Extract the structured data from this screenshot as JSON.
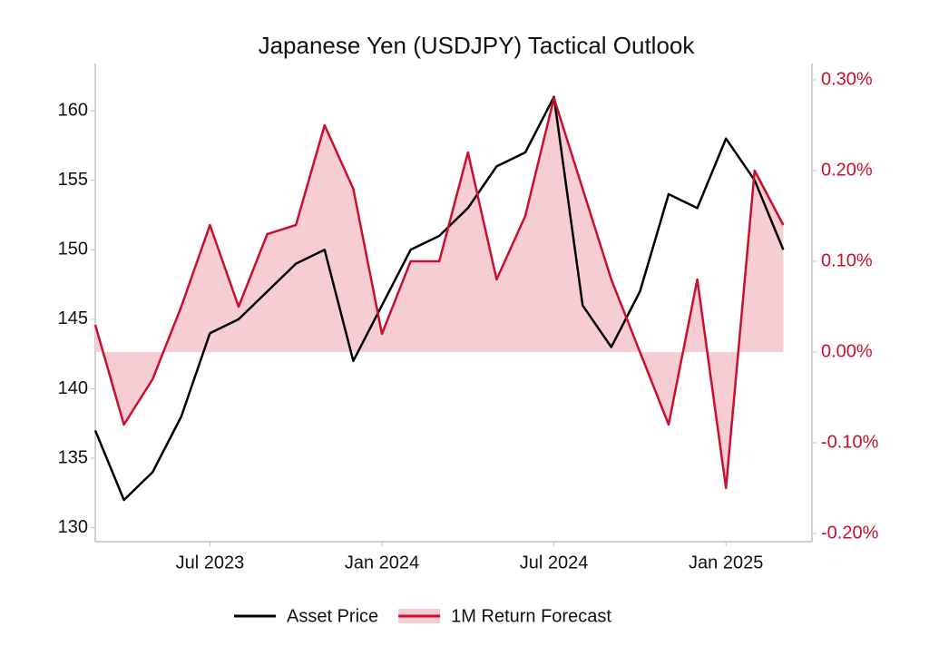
{
  "chart_data": {
    "type": "line",
    "title": "Japanese Yen (USDJPY) Tactical Outlook",
    "x": [
      "2023-03",
      "2023-04",
      "2023-05",
      "2023-06",
      "2023-07",
      "2023-08",
      "2023-09",
      "2023-10",
      "2023-11",
      "2023-12",
      "2024-01",
      "2024-02",
      "2024-03",
      "2024-04",
      "2024-05",
      "2024-06",
      "2024-07",
      "2024-08",
      "2024-09",
      "2024-10",
      "2024-11",
      "2024-12",
      "2025-01",
      "2025-02",
      "2025-03"
    ],
    "series": [
      {
        "name": "Asset Price",
        "color": "#000000",
        "values": [
          137,
          132,
          134,
          138,
          144,
          145,
          147,
          149,
          150,
          142,
          146,
          150,
          151,
          153,
          156,
          157,
          161,
          146,
          143,
          147,
          154,
          153,
          158,
          155,
          150
        ]
      },
      {
        "name": "1M Return Forecast",
        "color": "#c8102e",
        "fill": "#f6cdd2",
        "axis": "y2",
        "values": [
          0.03,
          -0.08,
          -0.03,
          0.05,
          0.14,
          0.05,
          0.13,
          0.14,
          0.25,
          0.18,
          0.02,
          0.1,
          0.1,
          0.22,
          0.08,
          0.15,
          0.28,
          0.18,
          0.08,
          0.0,
          -0.08,
          0.08,
          -0.15,
          0.2,
          0.14
        ]
      }
    ],
    "xlim": [
      "2023-03",
      "2025-04"
    ],
    "xticks": [
      {
        "value": "2023-07",
        "label": "Jul 2023"
      },
      {
        "value": "2024-01",
        "label": "Jan 2024"
      },
      {
        "value": "2024-07",
        "label": "Jul 2024"
      },
      {
        "value": "2025-01",
        "label": "Jan 2025"
      }
    ],
    "ylim": [
      129,
      163.4
    ],
    "yticks": [
      130,
      135,
      140,
      145,
      150,
      155,
      160
    ],
    "y2lim": [
      -0.209,
      0.318
    ],
    "y2ticks": [
      {
        "value": -0.2,
        "label": "-0.20%"
      },
      {
        "value": -0.1,
        "label": "-0.10%"
      },
      {
        "value": 0,
        "label": "0.00%"
      },
      {
        "value": 0.1,
        "label": "0.10%"
      },
      {
        "value": 0.2,
        "label": "0.20%"
      },
      {
        "value": 0.3,
        "label": "0.30%"
      }
    ],
    "legend": "bottom"
  }
}
